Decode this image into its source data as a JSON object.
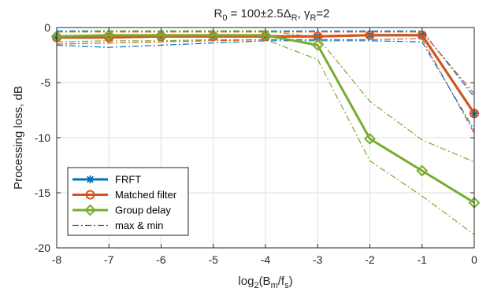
{
  "chart_data": {
    "type": "line",
    "title": {
      "main": "R",
      "main_sub": "0",
      "mid": " = 100±2.5Δ",
      "mid_sub": "R",
      "sep": ", γ",
      "end_sub": "R",
      "end": "=2"
    },
    "xlabel": {
      "pre": "log",
      "sub": "2",
      "post": "(B",
      "sub2": "m",
      "post2": "/f",
      "sub3": "s",
      "end": ")"
    },
    "ylabel": "Processing loss, dB",
    "xlim": [
      -8,
      0
    ],
    "ylim": [
      -20,
      0
    ],
    "xticks": [
      "-8",
      "-7",
      "-6",
      "-5",
      "-4",
      "-3",
      "-2",
      "-1",
      "0"
    ],
    "yticks": [
      "0",
      "-5",
      "-10",
      "-15",
      "-20"
    ],
    "grid": true,
    "legend_position": "bottom-left",
    "x": [
      -8,
      -7,
      -6,
      -5,
      -4,
      -3,
      -2,
      -1,
      0
    ],
    "series": [
      {
        "name": "FRFT",
        "color": "#0072BD",
        "marker": "star",
        "style": "solid",
        "values": [
          -0.9,
          -0.9,
          -0.8,
          -0.8,
          -0.8,
          -0.8,
          -0.7,
          -0.7,
          -7.8
        ]
      },
      {
        "name": "Matched filter",
        "color": "#D95319",
        "marker": "circle",
        "style": "solid",
        "values": [
          -0.9,
          -0.9,
          -0.8,
          -0.8,
          -0.8,
          -0.8,
          -0.7,
          -0.7,
          -7.8
        ]
      },
      {
        "name": "Group delay",
        "color": "#77AC30",
        "marker": "diamond",
        "style": "solid",
        "values": [
          -0.8,
          -0.7,
          -0.7,
          -0.7,
          -0.7,
          -1.6,
          -10.1,
          -13.0,
          -15.9
        ]
      },
      {
        "name": "max & min",
        "color": "#0072BD",
        "marker": "none",
        "style": "dashdot",
        "values": [
          -1.6,
          -1.8,
          -1.6,
          -1.4,
          -1.2,
          -1.2,
          -1.2,
          -1.3,
          -9.3
        ]
      }
    ],
    "bounds": [
      {
        "color": "#0072BD",
        "values": [
          -0.3,
          -0.3,
          -0.3,
          -0.3,
          -0.3,
          -0.3,
          -0.3,
          -0.3,
          -6.3
        ]
      },
      {
        "color": "#D95319",
        "values": [
          -0.4,
          -0.4,
          -0.4,
          -0.4,
          -0.4,
          -0.4,
          -0.4,
          -0.4,
          -6.0
        ]
      },
      {
        "color": "#D95319",
        "values": [
          -1.5,
          -1.4,
          -1.3,
          -1.2,
          -1.1,
          -1.1,
          -1.1,
          -1.0,
          -9.6
        ]
      },
      {
        "color": "#77AC30",
        "values": [
          -0.4,
          -0.3,
          -0.3,
          -0.3,
          -0.3,
          -0.9,
          -6.7,
          -10.2,
          -12.2
        ]
      },
      {
        "color": "#77AC30",
        "values": [
          -1.3,
          -1.2,
          -1.2,
          -1.1,
          -1.1,
          -2.9,
          -12.1,
          -15.3,
          -18.8
        ]
      }
    ]
  }
}
